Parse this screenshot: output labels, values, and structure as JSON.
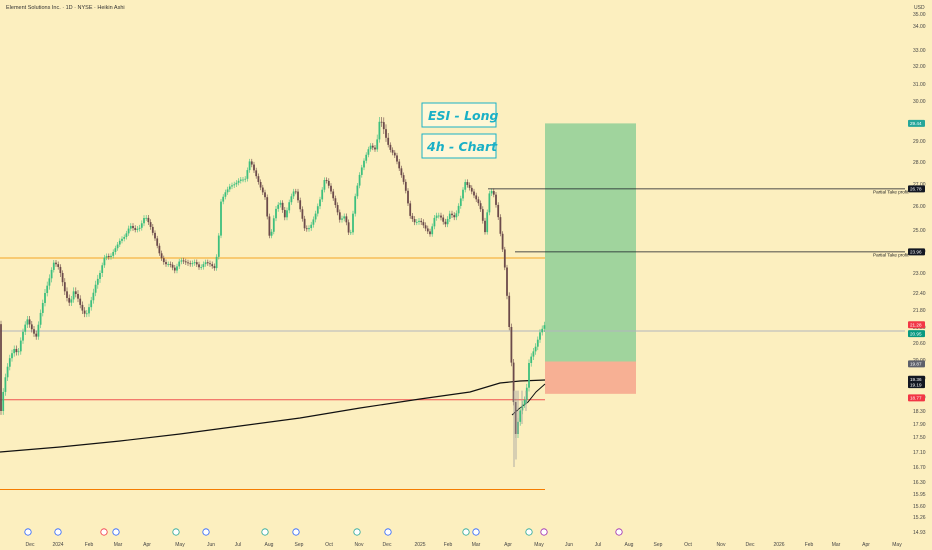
{
  "header": {
    "title": "Element Solutions Inc. · 1D · NYSE · Heikin Ashi",
    "currency": "USD"
  },
  "chart_data": {
    "type": "candlestick",
    "symbol": "ESI",
    "interval": "1D",
    "style": "Heikin Ashi",
    "annotations": [
      "ESI - Long",
      "4h - Chart"
    ],
    "ylim": [
      14.9,
      35.5
    ],
    "price_ticks": [
      "35.00",
      "34.00",
      "33.00",
      "32.00",
      "31.00",
      "30.00",
      "29.00",
      "28.00",
      "27.00",
      "26.00",
      "25.00",
      "24.00",
      "23.00",
      "22.40",
      "21.80",
      "21.20",
      "20.60",
      "20.00",
      "19.40",
      "18.80",
      "18.30",
      "17.90",
      "17.50",
      "17.10",
      "16.70",
      "16.30",
      "15.95",
      "15.60",
      "15.26",
      "14.93"
    ],
    "x_labels": [
      "Dec",
      "2024",
      "Feb",
      "Mar",
      "Apr",
      "May",
      "Jun",
      "Jul",
      "Aug",
      "Sep",
      "Oct",
      "Nov",
      "Dec",
      "2025",
      "Feb",
      "Mar",
      "Apr",
      "May",
      "Jun",
      "Jul",
      "Aug",
      "Sep",
      "Oct",
      "Nov",
      "Dec",
      "2026",
      "Feb",
      "Mar",
      "Apr",
      "May"
    ],
    "price_labels": [
      {
        "label": "29.44",
        "value": 29.44,
        "color": "#26a69a"
      },
      {
        "label": "26.78",
        "value": 26.78,
        "color": "#131722"
      },
      {
        "label": "23.96",
        "value": 23.96,
        "color": "#131722"
      },
      {
        "label": "21.28",
        "value": 21.28,
        "color": "#f23645"
      },
      {
        "label": "20.95",
        "value": 20.95,
        "color": "#089981"
      },
      {
        "label": "19.87",
        "value": 19.87,
        "color": "#5d606b"
      },
      {
        "label": "19.36",
        "value": 19.36,
        "color": "#131722"
      },
      {
        "label": "19.19",
        "value": 19.19,
        "color": "#131722"
      },
      {
        "label": "18.77",
        "value": 18.77,
        "color": "#f23645"
      }
    ],
    "partial_take_profit": [
      {
        "label": "Partial Take profit",
        "value": 26.78
      },
      {
        "label": "Partial Take profit",
        "value": 23.96
      }
    ],
    "horizontal_levels": [
      {
        "value": 23.68,
        "color": "#f5a623"
      },
      {
        "value": 21.05,
        "color": "#b2b5be"
      },
      {
        "value": 18.7,
        "color": "#ef5350"
      },
      {
        "value": 16.08,
        "color": "#f57c00"
      }
    ],
    "trade": {
      "entry": 19.95,
      "stop": 18.9,
      "target": 29.44
    },
    "ma_series_name": "",
    "price_path": [
      [
        0,
        18.0
      ],
      [
        4,
        19.2
      ],
      [
        9,
        20.0
      ],
      [
        14,
        20.4
      ],
      [
        18,
        20.2
      ],
      [
        22,
        20.9
      ],
      [
        27,
        21.5
      ],
      [
        32,
        21.1
      ],
      [
        36,
        20.8
      ],
      [
        40,
        21.6
      ],
      [
        45,
        22.4
      ],
      [
        50,
        22.9
      ],
      [
        54,
        23.5
      ],
      [
        58,
        23.3
      ],
      [
        62,
        22.8
      ],
      [
        66,
        22.3
      ],
      [
        70,
        22.0
      ],
      [
        74,
        22.5
      ],
      [
        78,
        22.2
      ],
      [
        82,
        21.8
      ],
      [
        86,
        21.6
      ],
      [
        90,
        22.0
      ],
      [
        95,
        22.6
      ],
      [
        100,
        23.0
      ],
      [
        105,
        23.8
      ],
      [
        110,
        23.7
      ],
      [
        115,
        24.1
      ],
      [
        120,
        24.5
      ],
      [
        125,
        24.7
      ],
      [
        130,
        25.2
      ],
      [
        135,
        25.0
      ],
      [
        140,
        25.1
      ],
      [
        145,
        25.6
      ],
      [
        150,
        25.2
      ],
      [
        155,
        24.6
      ],
      [
        160,
        23.8
      ],
      [
        165,
        23.4
      ],
      [
        170,
        23.4
      ],
      [
        175,
        23.1
      ],
      [
        180,
        23.6
      ],
      [
        185,
        23.5
      ],
      [
        190,
        23.4
      ],
      [
        195,
        23.5
      ],
      [
        200,
        23.2
      ],
      [
        205,
        23.5
      ],
      [
        210,
        23.4
      ],
      [
        215,
        23.2
      ],
      [
        218,
        24.2
      ],
      [
        221,
        26.2
      ],
      [
        225,
        26.6
      ],
      [
        230,
        26.9
      ],
      [
        235,
        27.0
      ],
      [
        240,
        27.2
      ],
      [
        245,
        27.2
      ],
      [
        250,
        28.1
      ],
      [
        255,
        27.5
      ],
      [
        260,
        26.9
      ],
      [
        265,
        26.4
      ],
      [
        270,
        24.5
      ],
      [
        275,
        25.8
      ],
      [
        280,
        26.2
      ],
      [
        285,
        25.5
      ],
      [
        290,
        26.3
      ],
      [
        295,
        26.8
      ],
      [
        300,
        25.9
      ],
      [
        305,
        25.0
      ],
      [
        310,
        25.1
      ],
      [
        315,
        25.6
      ],
      [
        320,
        26.3
      ],
      [
        325,
        27.3
      ],
      [
        330,
        26.8
      ],
      [
        335,
        26.1
      ],
      [
        340,
        25.4
      ],
      [
        345,
        25.6
      ],
      [
        350,
        24.6
      ],
      [
        355,
        26.4
      ],
      [
        360,
        27.5
      ],
      [
        365,
        28.2
      ],
      [
        370,
        28.8
      ],
      [
        375,
        28.6
      ],
      [
        380,
        29.6
      ],
      [
        385,
        29.2
      ],
      [
        390,
        28.6
      ],
      [
        395,
        28.3
      ],
      [
        400,
        27.6
      ],
      [
        405,
        26.9
      ],
      [
        410,
        25.6
      ],
      [
        415,
        25.3
      ],
      [
        420,
        25.4
      ],
      [
        425,
        25.1
      ],
      [
        430,
        24.8
      ],
      [
        435,
        25.6
      ],
      [
        440,
        25.6
      ],
      [
        445,
        25.2
      ],
      [
        450,
        25.7
      ],
      [
        455,
        25.5
      ],
      [
        460,
        26.2
      ],
      [
        465,
        27.1
      ],
      [
        470,
        26.8
      ],
      [
        475,
        26.4
      ],
      [
        480,
        26.0
      ],
      [
        485,
        24.9
      ],
      [
        490,
        26.8
      ],
      [
        494,
        26.5
      ],
      [
        498,
        25.6
      ],
      [
        502,
        24.3
      ],
      [
        506,
        22.8
      ],
      [
        510,
        20.8
      ],
      [
        513,
        18.9
      ],
      [
        516,
        17.5
      ],
      [
        519,
        18.2
      ],
      [
        522,
        18.5
      ],
      [
        526,
        18.8
      ],
      [
        529,
        19.9
      ],
      [
        532,
        20.2
      ],
      [
        536,
        20.5
      ],
      [
        540,
        21.0
      ],
      [
        545,
        21.3
      ]
    ]
  }
}
